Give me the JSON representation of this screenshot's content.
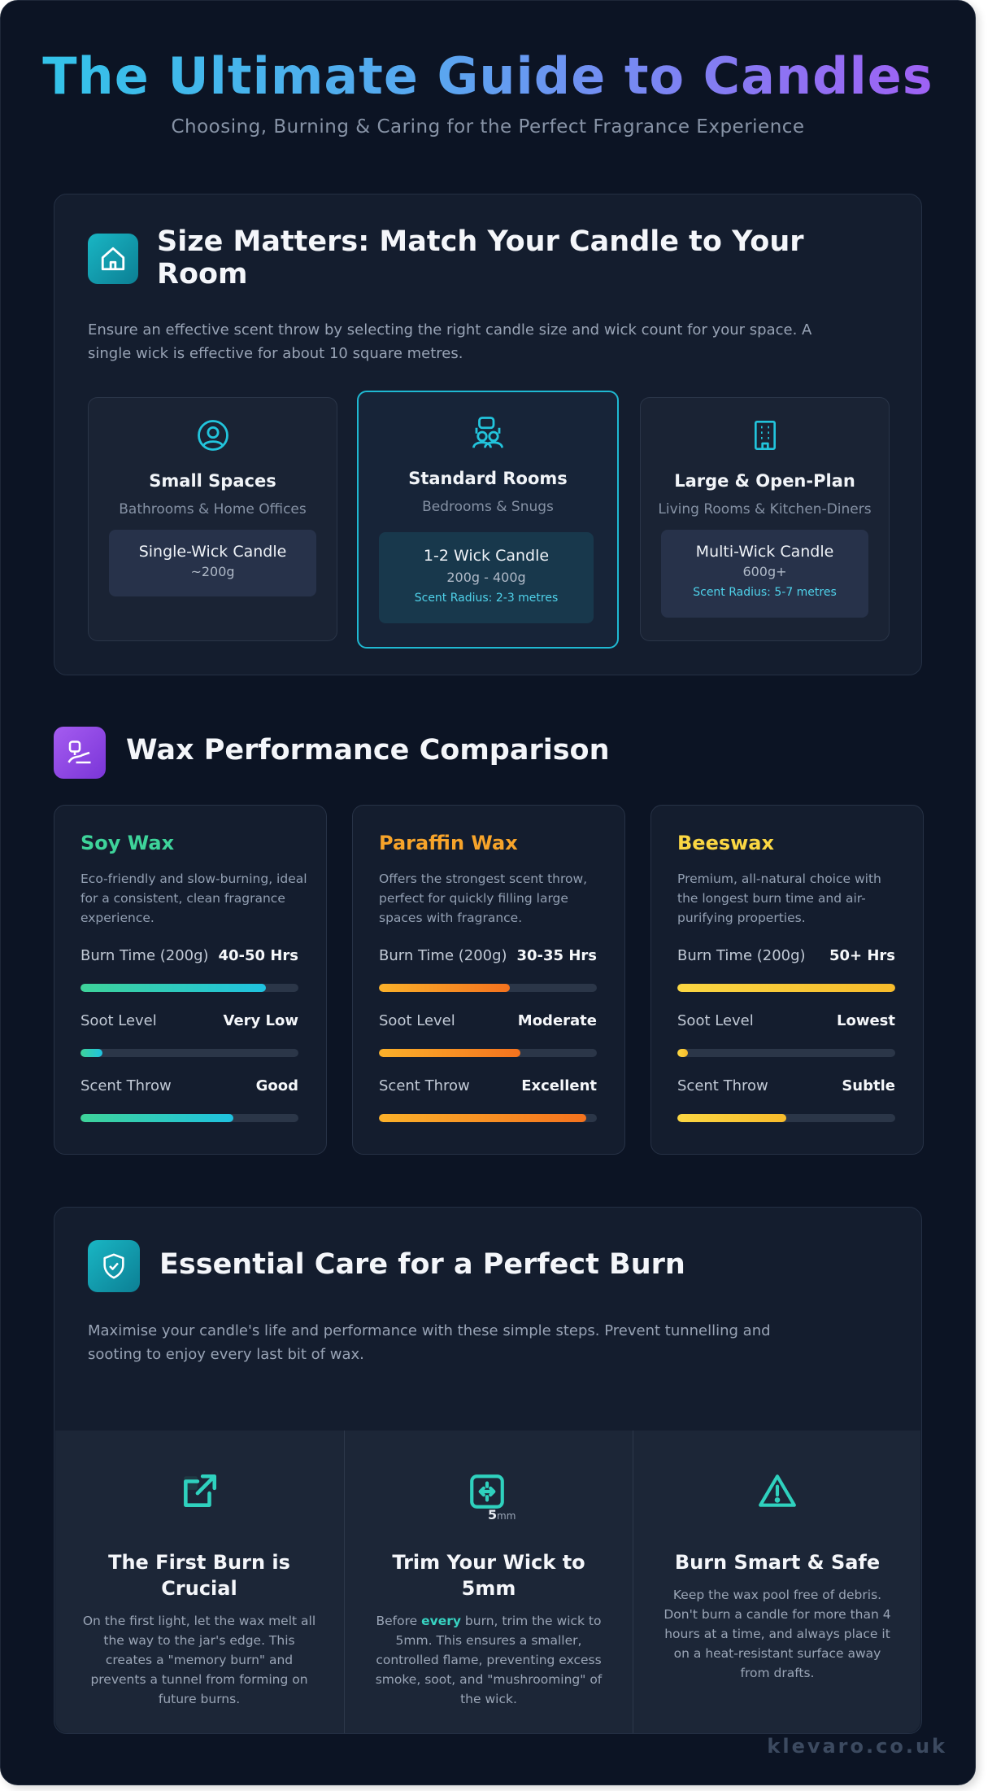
{
  "header": {
    "title": "The Ultimate Guide to Candles",
    "subtitle": "Choosing, Burning & Caring for the Perfect Fragrance Experience"
  },
  "size_section": {
    "icon": "house-icon",
    "title": "Size Matters: Match Your Candle to Your Room",
    "intro": "Ensure an effective scent throw by selecting the right candle size and wick count for your space. A single wick is effective for about 10 square metres.",
    "cards": [
      {
        "icon": "user-circle-icon",
        "name": "Small Spaces",
        "desc": "Bathrooms & Home Offices",
        "candle": "Single-Wick Candle",
        "weight": "~200g",
        "radius": ""
      },
      {
        "icon": "people-sofa-icon",
        "name": "Standard Rooms",
        "desc": "Bedrooms & Snugs",
        "candle": "1-2 Wick Candle",
        "weight": "200g - 400g",
        "radius": "Scent Radius: 2-3 metres"
      },
      {
        "icon": "building-icon",
        "name": "Large & Open-Plan",
        "desc": "Living Rooms & Kitchen-Diners",
        "candle": "Multi-Wick Candle",
        "weight": "600g+",
        "radius": "Scent Radius: 5-7 metres"
      }
    ]
  },
  "wax_section": {
    "icon": "wax-icon",
    "title": "Wax Performance Comparison",
    "cards": [
      {
        "name": "Soy Wax",
        "color": "#3ed39a",
        "desc": "Eco-friendly and slow-burning, ideal for a consistent, clean fragrance experience.",
        "metrics": [
          {
            "label": "Burn Time (200g)",
            "value": "40-50 Hrs",
            "level": 0.85
          },
          {
            "label": "Soot Level",
            "value": "Very Low",
            "level": 0.1
          },
          {
            "label": "Scent Throw",
            "value": "Good",
            "level": 0.7
          }
        ]
      },
      {
        "name": "Paraffin Wax",
        "color": "#f7a42a",
        "desc": "Offers the strongest scent throw, perfect for quickly filling large spaces with fragrance.",
        "metrics": [
          {
            "label": "Burn Time (200g)",
            "value": "30-35 Hrs",
            "level": 0.6
          },
          {
            "label": "Soot Level",
            "value": "Moderate",
            "level": 0.65
          },
          {
            "label": "Scent Throw",
            "value": "Excellent",
            "level": 0.95
          }
        ]
      },
      {
        "name": "Beeswax",
        "color": "#fbd743",
        "desc": "Premium, all-natural choice with the longest burn time and air-purifying properties.",
        "metrics": [
          {
            "label": "Burn Time (200g)",
            "value": "50+ Hrs",
            "level": 1.0
          },
          {
            "label": "Soot Level",
            "value": "Lowest",
            "level": 0.05
          },
          {
            "label": "Scent Throw",
            "value": "Subtle",
            "level": 0.5
          }
        ]
      }
    ]
  },
  "care_section": {
    "icon": "shield-check-icon",
    "title": "Essential Care for a Perfect Burn",
    "intro": "Maximise your candle's life and performance with these simple steps. Prevent tunnelling and sooting to enjoy every last bit of wax.",
    "tips": [
      {
        "icon": "external-link-icon",
        "title": "The First Burn is Crucial",
        "text": "On the first light, let the wax melt all the way to the jar's edge. This creates a \"memory burn\" and prevents a tunnel from forming on future burns."
      },
      {
        "icon": "wick-trim-icon",
        "badge_num": "5",
        "badge_unit": "mm",
        "title": "Trim Your Wick to 5mm",
        "text_before": "Before ",
        "text_bold": "every",
        "text_after": " burn, trim the wick to 5mm. This ensures a smaller, controlled flame, preventing excess smoke, soot, and \"mushrooming\" of the wick."
      },
      {
        "icon": "warning-triangle-icon",
        "title": "Burn Smart & Safe",
        "text": "Keep the wax pool free of debris. Don't burn a candle for more than 4 hours at a time, and always place it on a heat-resistant surface away from drafts."
      }
    ]
  },
  "footer": {
    "brand": "klevaro.co.uk"
  }
}
